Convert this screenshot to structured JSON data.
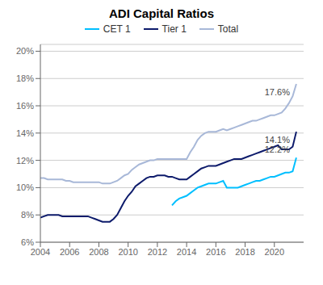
{
  "chart_data": {
    "type": "line",
    "title": "ADI Capital Ratios",
    "x": [
      2004.0,
      2004.25,
      2004.5,
      2004.75,
      2005.0,
      2005.25,
      2005.5,
      2005.75,
      2006.0,
      2006.25,
      2006.5,
      2006.75,
      2007.0,
      2007.25,
      2007.5,
      2007.75,
      2008.0,
      2008.25,
      2008.5,
      2008.75,
      2009.0,
      2009.25,
      2009.5,
      2009.75,
      2010.0,
      2010.25,
      2010.5,
      2010.75,
      2011.0,
      2011.25,
      2011.5,
      2011.75,
      2012.0,
      2012.25,
      2012.5,
      2012.75,
      2013.0,
      2013.25,
      2013.5,
      2013.75,
      2014.0,
      2014.25,
      2014.5,
      2014.75,
      2015.0,
      2015.25,
      2015.5,
      2015.75,
      2016.0,
      2016.25,
      2016.5,
      2016.75,
      2017.0,
      2017.25,
      2017.5,
      2017.75,
      2018.0,
      2018.25,
      2018.5,
      2018.75,
      2019.0,
      2019.25,
      2019.5,
      2019.75,
      2020.0,
      2020.25,
      2020.5,
      2020.75,
      2021.0,
      2021.25,
      2021.5
    ],
    "series": [
      {
        "name": "CET 1",
        "color": "#00BFFF",
        "values": [
          null,
          null,
          null,
          null,
          null,
          null,
          null,
          null,
          null,
          null,
          null,
          null,
          null,
          null,
          null,
          null,
          null,
          null,
          null,
          null,
          null,
          null,
          null,
          null,
          null,
          null,
          null,
          null,
          null,
          null,
          null,
          null,
          null,
          null,
          null,
          null,
          0.087,
          0.09,
          0.092,
          0.093,
          0.094,
          0.096,
          0.098,
          0.1,
          0.101,
          0.102,
          0.103,
          0.103,
          0.103,
          0.104,
          0.105,
          0.1,
          0.1,
          0.1,
          0.1,
          0.101,
          0.102,
          0.103,
          0.104,
          0.105,
          0.105,
          0.106,
          0.107,
          0.108,
          0.108,
          0.109,
          0.11,
          0.111,
          0.111,
          0.112,
          0.122
        ]
      },
      {
        "name": "Tier 1",
        "color": "#0D1B6B",
        "values": [
          0.078,
          0.079,
          0.08,
          0.08,
          0.08,
          0.08,
          0.079,
          0.079,
          0.079,
          0.079,
          0.079,
          0.079,
          0.079,
          0.079,
          0.078,
          0.077,
          0.076,
          0.075,
          0.075,
          0.075,
          0.077,
          0.08,
          0.085,
          0.09,
          0.094,
          0.097,
          0.101,
          0.103,
          0.105,
          0.107,
          0.108,
          0.108,
          0.109,
          0.109,
          0.109,
          0.108,
          0.108,
          0.107,
          0.106,
          0.106,
          0.106,
          0.108,
          0.11,
          0.112,
          0.114,
          0.115,
          0.116,
          0.116,
          0.116,
          0.117,
          0.118,
          0.119,
          0.12,
          0.121,
          0.121,
          0.121,
          0.122,
          0.123,
          0.124,
          0.125,
          0.126,
          0.127,
          0.128,
          0.129,
          0.13,
          0.131,
          0.128,
          0.128,
          0.128,
          0.13,
          0.141
        ]
      },
      {
        "name": "Total",
        "color": "#A8B8D8",
        "values": [
          0.107,
          0.107,
          0.106,
          0.106,
          0.106,
          0.106,
          0.106,
          0.105,
          0.105,
          0.104,
          0.104,
          0.104,
          0.104,
          0.104,
          0.104,
          0.104,
          0.104,
          0.103,
          0.103,
          0.103,
          0.104,
          0.105,
          0.107,
          0.109,
          0.11,
          0.113,
          0.115,
          0.117,
          0.118,
          0.119,
          0.12,
          0.12,
          0.121,
          0.121,
          0.121,
          0.121,
          0.121,
          0.121,
          0.121,
          0.121,
          0.121,
          0.126,
          0.13,
          0.135,
          0.138,
          0.14,
          0.141,
          0.141,
          0.141,
          0.142,
          0.143,
          0.142,
          0.143,
          0.144,
          0.145,
          0.146,
          0.147,
          0.148,
          0.149,
          0.149,
          0.15,
          0.151,
          0.152,
          0.153,
          0.153,
          0.154,
          0.155,
          0.158,
          0.162,
          0.167,
          0.176
        ]
      }
    ],
    "annotations": [
      {
        "text": "17.6%",
        "series": "Total"
      },
      {
        "text": "14.1%",
        "series": "Tier 1"
      },
      {
        "text": "12.2%",
        "series": "CET 1"
      }
    ],
    "xlim": [
      2004,
      2022.0
    ],
    "xticks": [
      2004,
      2006,
      2008,
      2010,
      2012,
      2014,
      2016,
      2018,
      2020
    ],
    "ylim": [
      0.06,
      0.205
    ],
    "yticks": [
      {
        "value": 0.06,
        "label": "6%"
      },
      {
        "value": 0.08,
        "label": "8%"
      },
      {
        "value": 0.1,
        "label": "10%"
      },
      {
        "value": 0.12,
        "label": "12%"
      },
      {
        "value": 0.14,
        "label": "14%"
      },
      {
        "value": 0.16,
        "label": "16%"
      },
      {
        "value": 0.18,
        "label": "18%"
      },
      {
        "value": 0.2,
        "label": "20%"
      }
    ],
    "grid": true
  }
}
